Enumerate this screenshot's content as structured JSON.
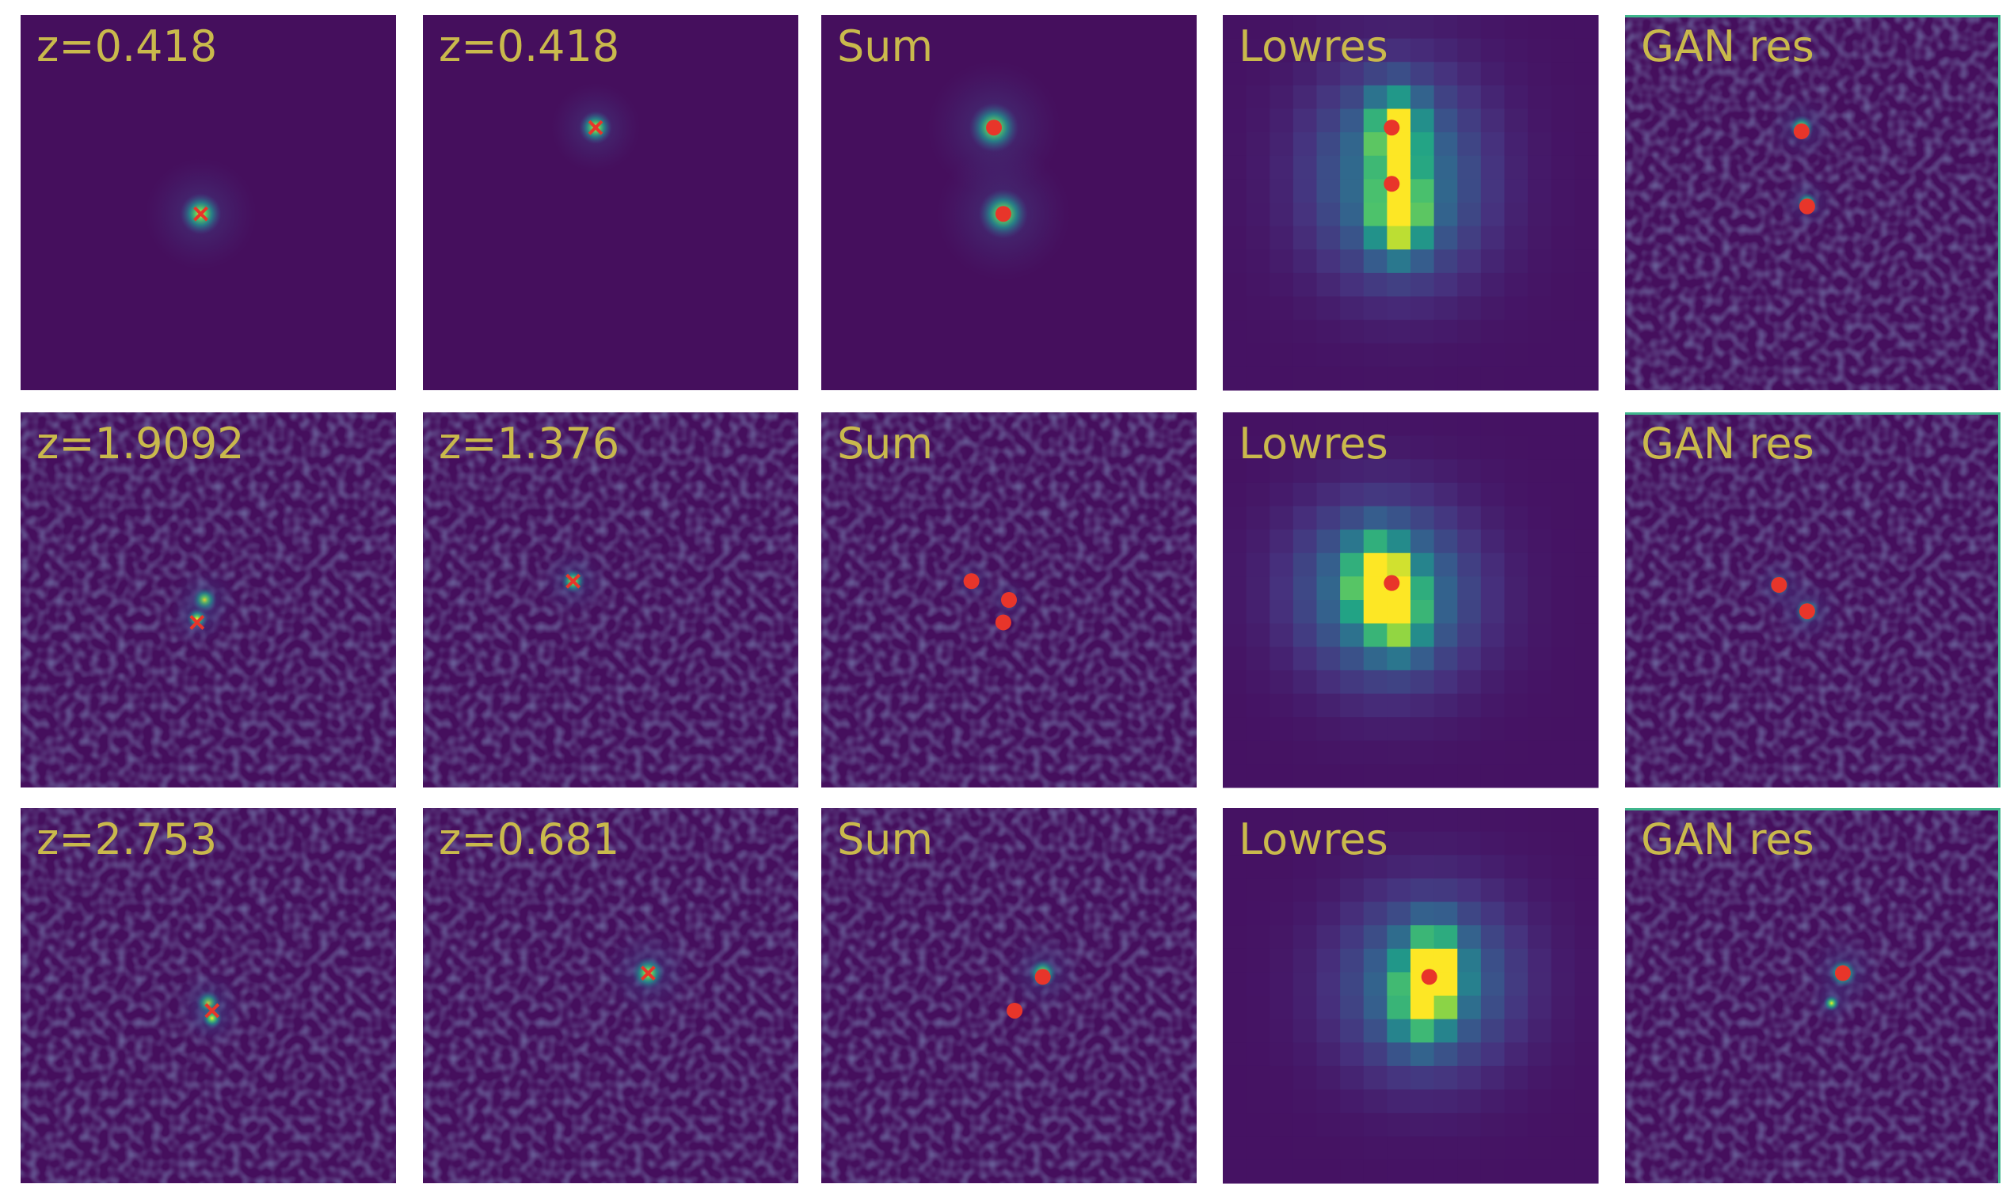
{
  "panels": [
    [
      "z=0.418",
      "z=0.418",
      "Sum",
      "Lowres",
      "GAN res"
    ],
    [
      "z=1.9092",
      "z=1.376",
      "Sum",
      "Lowres",
      "GAN res"
    ],
    [
      "z=2.753",
      "z=0.681",
      "Sum",
      "Lowres",
      "GAN res"
    ]
  ]
}
